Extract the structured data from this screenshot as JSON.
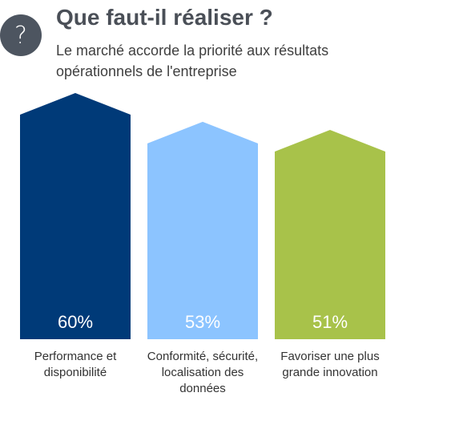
{
  "header": {
    "icon": "question-mark-icon",
    "icon_glyph": "?",
    "title": "Que faut-il réaliser ?",
    "subtitle": "Le marché accorde la priorité aux résultats opérationnels de l'entreprise"
  },
  "chart_data": {
    "type": "bar",
    "title": "Que faut-il réaliser ?",
    "subtitle": "Le marché accorde la priorité aux résultats opérationnels de l'entreprise",
    "categories": [
      "Performance et disponibilité",
      "Conformité, sécurité, localisation des données",
      "Favoriser une plus grande innovation"
    ],
    "values": [
      60,
      53,
      51
    ],
    "value_labels": [
      "60%",
      "53%",
      "51%"
    ],
    "colors": [
      "#003a78",
      "#8cc4ff",
      "#a8c24a"
    ],
    "bar_shape": "house-arrow",
    "grid": false,
    "legend": "none"
  }
}
